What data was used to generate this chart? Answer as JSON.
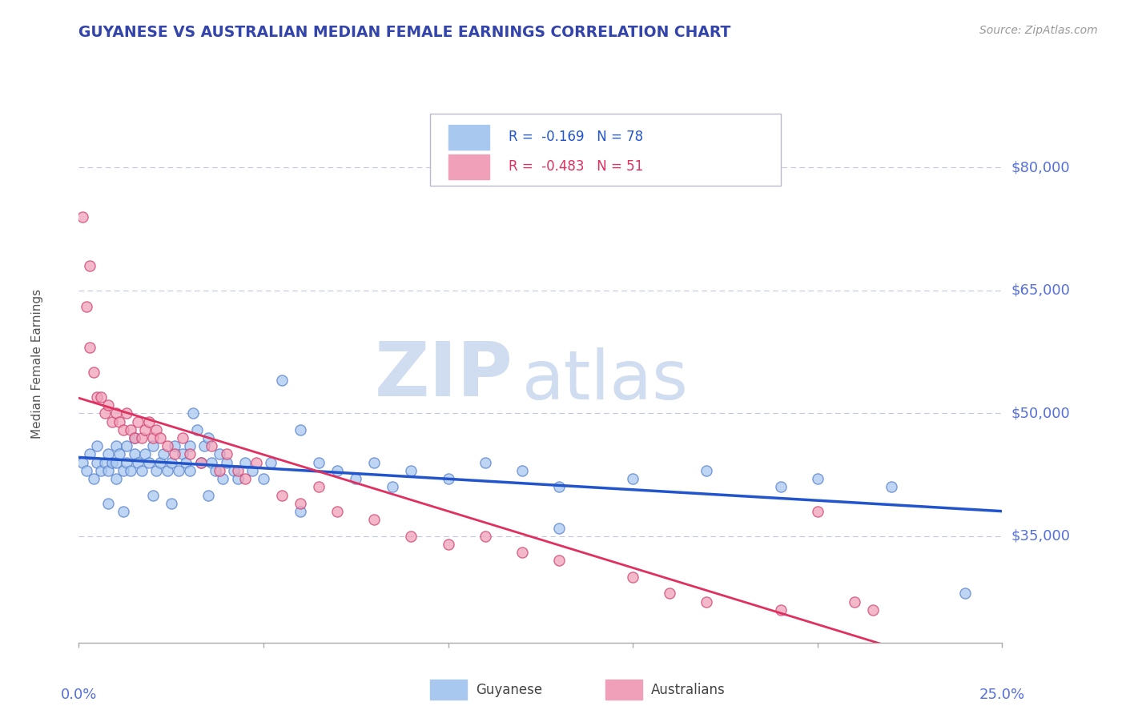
{
  "title": "GUYANESE VS AUSTRALIAN MEDIAN FEMALE EARNINGS CORRELATION CHART",
  "source": "Source: ZipAtlas.com",
  "ylabel": "Median Female Earnings",
  "yticks": [
    35000,
    50000,
    65000,
    80000
  ],
  "ytick_labels": [
    "$35,000",
    "$50,000",
    "$65,000",
    "$80,000"
  ],
  "xmin": 0.0,
  "xmax": 0.25,
  "ymin": 22000,
  "ymax": 90000,
  "legend_r1": "R =  -0.169   N = 78",
  "legend_r2": "R =  -0.483   N = 51",
  "color_blue": "#A8C8F0",
  "color_pink": "#F0A0B8",
  "color_line_blue": "#2255CC",
  "color_line_pink": "#E03060",
  "color_title": "#3344AA",
  "color_ytick": "#5570DD",
  "color_source": "#999999",
  "watermark_zip": "ZIP",
  "watermark_atlas": "atlas",
  "watermark_color": "#D0DCEF",
  "background_color": "#FFFFFF",
  "guyanese_x": [
    0.001,
    0.002,
    0.003,
    0.004,
    0.005,
    0.005,
    0.006,
    0.007,
    0.008,
    0.008,
    0.009,
    0.01,
    0.01,
    0.01,
    0.011,
    0.012,
    0.013,
    0.013,
    0.014,
    0.015,
    0.015,
    0.016,
    0.017,
    0.018,
    0.019,
    0.02,
    0.021,
    0.022,
    0.023,
    0.024,
    0.025,
    0.026,
    0.027,
    0.028,
    0.029,
    0.03,
    0.03,
    0.031,
    0.032,
    0.033,
    0.034,
    0.035,
    0.036,
    0.037,
    0.038,
    0.039,
    0.04,
    0.042,
    0.043,
    0.045,
    0.047,
    0.05,
    0.052,
    0.055,
    0.06,
    0.065,
    0.07,
    0.075,
    0.08,
    0.09,
    0.1,
    0.11,
    0.12,
    0.13,
    0.15,
    0.17,
    0.19,
    0.2,
    0.22,
    0.24,
    0.008,
    0.012,
    0.02,
    0.025,
    0.035,
    0.06,
    0.085,
    0.13
  ],
  "guyanese_y": [
    44000,
    43000,
    45000,
    42000,
    44000,
    46000,
    43000,
    44000,
    45000,
    43000,
    44000,
    46000,
    44000,
    42000,
    45000,
    43000,
    46000,
    44000,
    43000,
    45000,
    47000,
    44000,
    43000,
    45000,
    44000,
    46000,
    43000,
    44000,
    45000,
    43000,
    44000,
    46000,
    43000,
    45000,
    44000,
    43000,
    46000,
    50000,
    48000,
    44000,
    46000,
    47000,
    44000,
    43000,
    45000,
    42000,
    44000,
    43000,
    42000,
    44000,
    43000,
    42000,
    44000,
    54000,
    48000,
    44000,
    43000,
    42000,
    44000,
    43000,
    42000,
    44000,
    43000,
    41000,
    42000,
    43000,
    41000,
    42000,
    41000,
    28000,
    39000,
    38000,
    40000,
    39000,
    40000,
    38000,
    41000,
    36000
  ],
  "australians_x": [
    0.001,
    0.002,
    0.003,
    0.004,
    0.005,
    0.006,
    0.007,
    0.008,
    0.009,
    0.01,
    0.011,
    0.012,
    0.013,
    0.014,
    0.015,
    0.016,
    0.017,
    0.018,
    0.019,
    0.02,
    0.021,
    0.022,
    0.024,
    0.026,
    0.028,
    0.03,
    0.033,
    0.036,
    0.038,
    0.04,
    0.043,
    0.045,
    0.048,
    0.055,
    0.06,
    0.065,
    0.07,
    0.08,
    0.09,
    0.1,
    0.11,
    0.12,
    0.13,
    0.15,
    0.16,
    0.17,
    0.19,
    0.2,
    0.21,
    0.215,
    0.003
  ],
  "australians_y": [
    74000,
    63000,
    58000,
    55000,
    52000,
    52000,
    50000,
    51000,
    49000,
    50000,
    49000,
    48000,
    50000,
    48000,
    47000,
    49000,
    47000,
    48000,
    49000,
    47000,
    48000,
    47000,
    46000,
    45000,
    47000,
    45000,
    44000,
    46000,
    43000,
    45000,
    43000,
    42000,
    44000,
    40000,
    39000,
    41000,
    38000,
    37000,
    35000,
    34000,
    35000,
    33000,
    32000,
    30000,
    28000,
    27000,
    26000,
    38000,
    27000,
    26000,
    68000
  ]
}
